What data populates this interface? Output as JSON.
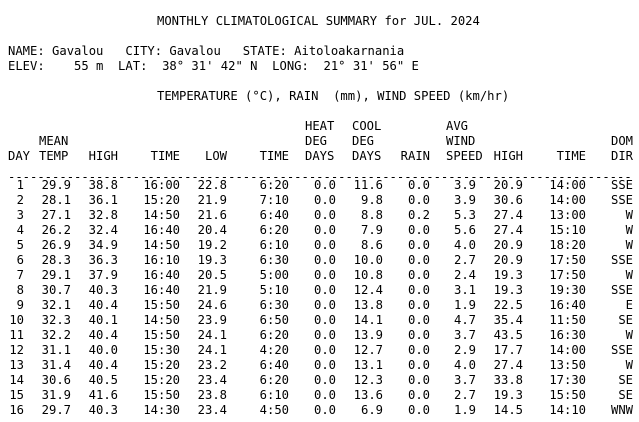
{
  "report": {
    "title": "MONTHLY CLIMATOLOGICAL SUMMARY for JUL. 2024",
    "name_line": "NAME: Gavalou   CITY: Gavalou   STATE: Aitoloakarnania",
    "elev_line": "ELEV:    55 m  LAT:  38° 31' 42\" N  LONG:  21° 31' 56\" E",
    "units_line": "TEMPERATURE (°C), RAIN  (mm), WIND SPEED (km/hr)"
  },
  "header": {
    "row1": [
      "",
      "",
      "",
      "",
      "",
      "",
      "HEAT",
      "COOL",
      "",
      "AVG",
      "",
      "",
      ""
    ],
    "row2": [
      "",
      "MEAN",
      "",
      "",
      "",
      "",
      "DEG",
      "DEG",
      "",
      "WIND",
      "",
      "",
      "DOM"
    ],
    "row3": [
      "DAY",
      "TEMP",
      "HIGH",
      "TIME",
      "LOW",
      "TIME",
      "DAYS",
      "DAYS",
      "RAIN",
      "SPEED",
      "HIGH",
      "TIME",
      "DIR"
    ]
  },
  "rule": "----------------------------------------------------------------------------------------------",
  "rows": [
    [
      "1",
      "29.9",
      "38.8",
      "16:00",
      "22.8",
      "6:20",
      "0.0",
      "11.6",
      "0.0",
      "3.9",
      "20.9",
      "14:00",
      "SSE"
    ],
    [
      "2",
      "28.1",
      "36.1",
      "15:20",
      "21.9",
      "7:10",
      "0.0",
      "9.8",
      "0.0",
      "3.9",
      "30.6",
      "14:00",
      "SSE"
    ],
    [
      "3",
      "27.1",
      "32.8",
      "14:50",
      "21.6",
      "6:40",
      "0.0",
      "8.8",
      "0.2",
      "5.3",
      "27.4",
      "13:00",
      "W"
    ],
    [
      "4",
      "26.2",
      "32.4",
      "16:40",
      "20.4",
      "6:20",
      "0.0",
      "7.9",
      "0.0",
      "5.6",
      "27.4",
      "15:10",
      "W"
    ],
    [
      "5",
      "26.9",
      "34.9",
      "14:50",
      "19.2",
      "6:10",
      "0.0",
      "8.6",
      "0.0",
      "4.0",
      "20.9",
      "18:20",
      "W"
    ],
    [
      "6",
      "28.3",
      "36.3",
      "16:10",
      "19.3",
      "6:30",
      "0.0",
      "10.0",
      "0.0",
      "2.7",
      "20.9",
      "17:50",
      "SSE"
    ],
    [
      "7",
      "29.1",
      "37.9",
      "16:40",
      "20.5",
      "5:00",
      "0.0",
      "10.8",
      "0.0",
      "2.4",
      "19.3",
      "17:50",
      "W"
    ],
    [
      "8",
      "30.7",
      "40.3",
      "16:40",
      "21.9",
      "5:10",
      "0.0",
      "12.4",
      "0.0",
      "3.1",
      "19.3",
      "19:30",
      "SSE"
    ],
    [
      "9",
      "32.1",
      "40.4",
      "15:50",
      "24.6",
      "6:30",
      "0.0",
      "13.8",
      "0.0",
      "1.9",
      "22.5",
      "16:40",
      "E"
    ],
    [
      "10",
      "32.3",
      "40.1",
      "14:50",
      "23.9",
      "6:50",
      "0.0",
      "14.1",
      "0.0",
      "4.7",
      "35.4",
      "11:50",
      "SE"
    ],
    [
      "11",
      "32.2",
      "40.4",
      "15:50",
      "24.1",
      "6:20",
      "0.0",
      "13.9",
      "0.0",
      "3.7",
      "43.5",
      "16:30",
      "W"
    ],
    [
      "12",
      "31.1",
      "40.0",
      "15:30",
      "24.1",
      "4:20",
      "0.0",
      "12.7",
      "0.0",
      "2.9",
      "17.7",
      "14:00",
      "SSE"
    ],
    [
      "13",
      "31.4",
      "40.4",
      "15:20",
      "23.2",
      "6:40",
      "0.0",
      "13.1",
      "0.0",
      "4.0",
      "27.4",
      "13:50",
      "W"
    ],
    [
      "14",
      "30.6",
      "40.5",
      "15:20",
      "23.4",
      "6:20",
      "0.0",
      "12.3",
      "0.0",
      "3.7",
      "33.8",
      "17:30",
      "SE"
    ],
    [
      "15",
      "31.9",
      "41.6",
      "15:50",
      "23.8",
      "6:10",
      "0.0",
      "13.6",
      "0.0",
      "2.7",
      "19.3",
      "15:50",
      "SE"
    ],
    [
      "16",
      "29.7",
      "40.3",
      "14:30",
      "23.4",
      "4:50",
      "0.0",
      "6.9",
      "0.0",
      "1.9",
      "14.5",
      "14:10",
      "WNW"
    ]
  ]
}
